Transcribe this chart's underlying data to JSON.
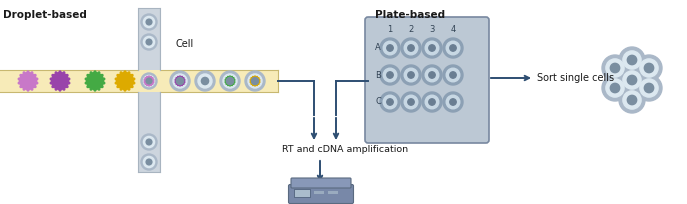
{
  "title_left": "Droplet-based",
  "title_right": "Plate-based",
  "label_cell": "Cell",
  "label_sort": "Sort single cells",
  "label_rt": "RT and cDNA amplification",
  "bg_color": "#ffffff",
  "channel_color": "#f7ebb8",
  "channel_border": "#c8b870",
  "cross_color": "#cdd5de",
  "cross_border": "#a8b4c0",
  "cell_outer": "#aab8c8",
  "cell_inner": "#dce8f0",
  "cell_core": "#7a8ea0",
  "arrow_color": "#2e4e72",
  "plate_bg": "#bcc8d4",
  "plate_border": "#7888a0",
  "well_outer": "#8ca0b4",
  "well_inner": "#c8d8e4",
  "well_core": "#6878900",
  "virus_colors": [
    "#c878c8",
    "#9944aa",
    "#44aa44",
    "#ddaa00"
  ],
  "machine_body": "#7888a8",
  "machine_top": "#8898b8",
  "machine_screen": "#aabccc",
  "text_color": "#1a1a1a"
}
